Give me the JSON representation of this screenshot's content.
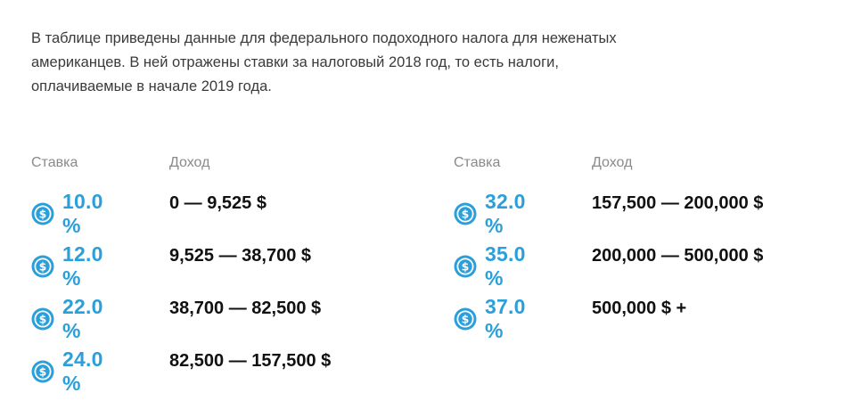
{
  "intro": "В таблице приведены данные для федерального подоходного налога для неженатых американцев. В ней отражены ставки за налоговый 2018 год, то есть налоги, оплачиваемые в начале 2019 года.",
  "columns": {
    "rate_header": "Ставка",
    "income_header": "Доход"
  },
  "colors": {
    "accent": "#2b9fd9",
    "header_text": "#8a8a8a",
    "body_text": "#111111"
  },
  "icon": "dollar-coin-icon",
  "left_rows": [
    {
      "rate": "10.0 %",
      "income": "0 — 9,525 $"
    },
    {
      "rate": "12.0 %",
      "income": "9,525 — 38,700 $"
    },
    {
      "rate": "22.0 %",
      "income": "38,700 — 82,500 $"
    },
    {
      "rate": "24.0 %",
      "income": "82,500 — 157,500 $"
    }
  ],
  "right_rows": [
    {
      "rate": "32.0 %",
      "income": "157,500 — 200,000 $"
    },
    {
      "rate": "35.0 %",
      "income": "200,000 — 500,000 $"
    },
    {
      "rate": "37.0 %",
      "income": "500,000 $ +"
    }
  ]
}
